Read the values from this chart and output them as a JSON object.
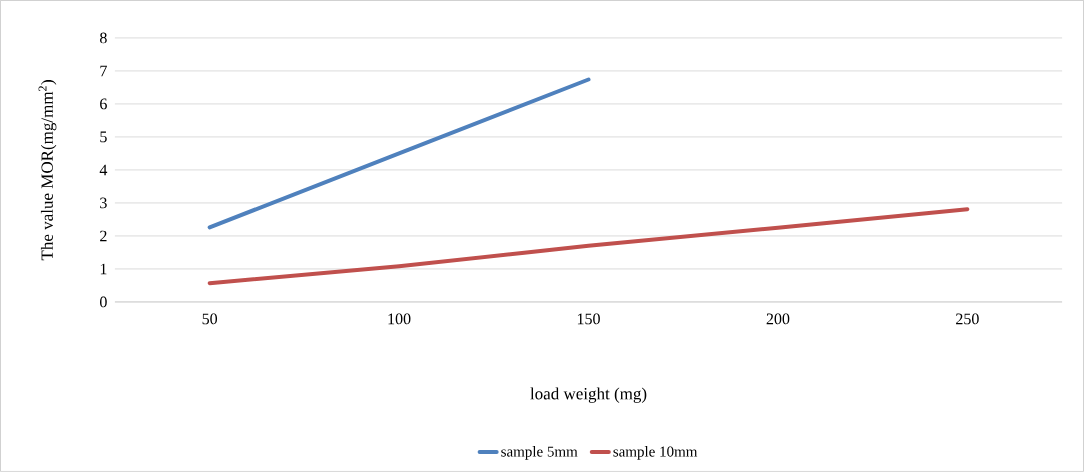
{
  "chart_data": {
    "type": "line",
    "xlabel": "load weight (mg)",
    "ylabel": "The value MOR(mg/mm$^{2}$)",
    "categories": [
      "50",
      "100",
      "150",
      "200",
      "250"
    ],
    "series": [
      {
        "name": "sample 5mm",
        "color": "#4f81bd",
        "values": [
          2.26,
          4.5,
          6.74,
          null,
          null
        ]
      },
      {
        "name": "sample 10mm",
        "color": "#c0504d",
        "values": [
          0.57,
          1.08,
          1.7,
          2.25,
          2.81
        ]
      }
    ],
    "ylim": [
      0,
      8
    ],
    "yticks": [
      0,
      1,
      2,
      3,
      4,
      5,
      6,
      7,
      8
    ],
    "grid": "y",
    "legend": "bottom"
  }
}
